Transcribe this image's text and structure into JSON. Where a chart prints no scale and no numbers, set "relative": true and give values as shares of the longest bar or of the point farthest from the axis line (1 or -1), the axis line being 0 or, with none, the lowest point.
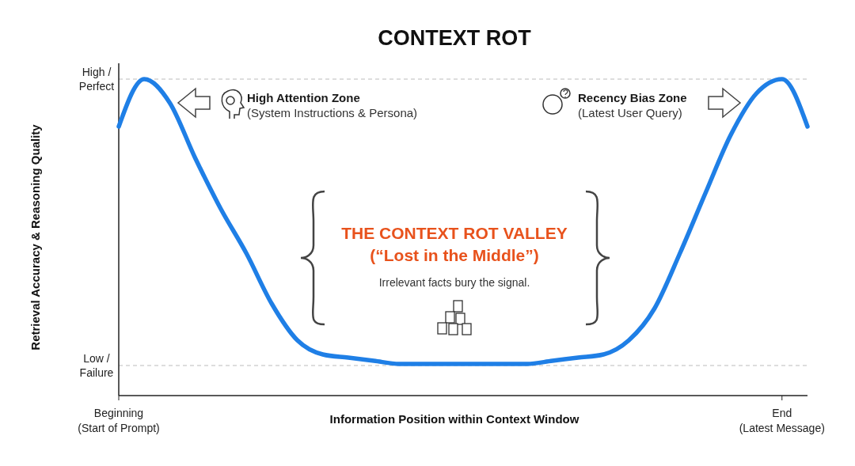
{
  "chart_data": {
    "type": "line",
    "title": "CONTEXT ROT",
    "xlabel": "Information Position within Context Window",
    "ylabel": "Retrieval Accuracy & Reasoning Quality",
    "relative": true,
    "categories": [
      "Beginning\n(Start of Prompt)",
      null,
      null,
      null,
      null,
      null,
      null,
      null,
      null,
      null,
      null,
      null,
      null,
      null,
      null,
      null,
      null,
      null,
      null,
      null,
      null,
      null,
      null,
      null,
      null,
      null,
      "End\n(Latest Message)",
      null
    ],
    "line_style": "solid",
    "ref_lines": [
      {
        "axis": "y",
        "value": 1,
        "label": "High /\nPerfect",
        "color": "#bbbbbb",
        "line_style": "dashed"
      },
      {
        "axis": "y",
        "value": 0.095,
        "label": "Low /\nFailure",
        "color": "#bbbbbb",
        "line_style": "dashed"
      }
    ],
    "series": [
      {
        "color": "#1f7fe6",
        "values": [
          0.85,
          1,
          0.925,
          0.75,
          0.59,
          0.45,
          0.29,
          0.175,
          0.13,
          0.12,
          0.11,
          0.1,
          0.1,
          0.1,
          0.1,
          0.1,
          0.1,
          0.11,
          0.12,
          0.13,
          0.175,
          0.275,
          0.45,
          0.64,
          0.825,
          0.955,
          1,
          0.85
        ]
      }
    ],
    "annotations": [
      "High Attention Zone",
      "(System Instructions & Persona)",
      "Recency Bias Zone",
      "(Latest User Query)",
      "THE CONTEXT ROT VALLEY",
      "(“Lost in the Middle”)",
      "Irrelevant facts bury the signal."
    ]
  }
}
